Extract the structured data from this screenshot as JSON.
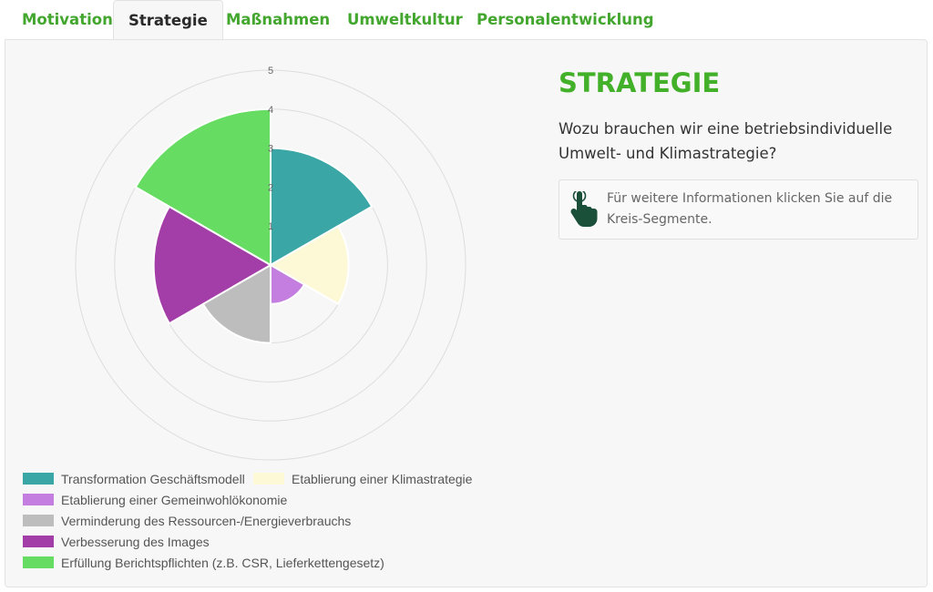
{
  "tabs": [
    {
      "label": "Motivation",
      "active": false
    },
    {
      "label": "Strategie",
      "active": true
    },
    {
      "label": "Maßnahmen",
      "active": false
    },
    {
      "label": "Umweltkultur",
      "active": false
    },
    {
      "label": "Personalentwicklung",
      "active": false
    }
  ],
  "section": {
    "title": "STRATEGIE",
    "question": "Wozu brauchen wir eine betriebsindividuelle Umwelt- und Klimastrategie?",
    "info_text": "Für weitere Informationen klicken Sie auf die Kreis-Segmente."
  },
  "colors": {
    "accent": "#43b02a",
    "tab_text": "#43a62e"
  },
  "icons": {
    "info": "pointing-hand-icon"
  },
  "chart_data": {
    "type": "polarArea",
    "r_min": 0,
    "r_max": 5,
    "ticks": [
      "1",
      "2",
      "3",
      "4",
      "5"
    ],
    "grid": true,
    "legend_position": "bottom",
    "series": [
      {
        "name": "Transformation Geschäftsmodell",
        "value": 3,
        "color": "#3aa6a6"
      },
      {
        "name": "Etablierung einer Klimastrategie",
        "value": 2,
        "color": "#fdf9d6"
      },
      {
        "name": "Etablierung einer Gemeinwohlökonomie",
        "value": 1,
        "color": "#c47ee0"
      },
      {
        "name": "Verminderung des Ressourcen-/Energieverbrauchs",
        "value": 2,
        "color": "#bdbdbd"
      },
      {
        "name": "Verbesserung des Images",
        "value": 3,
        "color": "#a33ea8"
      },
      {
        "name": "Erfüllung Berichtspflichten (z.B. CSR, Lieferkettengesetz)",
        "value": 4,
        "color": "#67dc63"
      }
    ]
  }
}
